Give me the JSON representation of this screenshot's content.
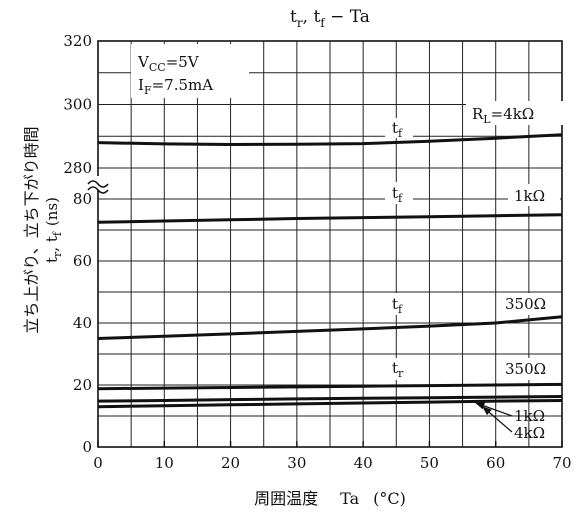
{
  "chart_data": {
    "type": "line",
    "title_main": "t",
    "title_sub_r": "r",
    "title_sep": ", ",
    "title_sub_f": "f",
    "title_tail": " − Ta",
    "ylabel_jp": "立ち上がり、立ち下がり時間",
    "ylabel_sym_t1": "t",
    "ylabel_sym_r": "r",
    "ylabel_sym_sep": ", t",
    "ylabel_sym_f": "f",
    "ylabel_unit": "(ns)",
    "xlabel_jp": "周囲温度",
    "xlabel_sym": "Ta",
    "xlabel_unit": "(°C)",
    "conditions": {
      "vcc_main": "V",
      "vcc_sub": "CC",
      "vcc_val": "=5V",
      "if_main": "I",
      "if_sub": "F",
      "if_val": "=7.5mA"
    },
    "x_ticks": [
      "0",
      "10",
      "20",
      "30",
      "40",
      "50",
      "60",
      "70"
    ],
    "y_ticks_upper": [
      "320",
      "300",
      "280"
    ],
    "y_ticks_lower": [
      "80",
      "60",
      "40",
      "20",
      "0"
    ],
    "xlim": [
      0,
      70
    ],
    "ylim_lower": [
      0,
      80
    ],
    "ylim_upper": [
      280,
      320
    ],
    "axis_break": true,
    "grid": true,
    "x": [
      0,
      10,
      20,
      30,
      40,
      50,
      60,
      70
    ],
    "series": [
      {
        "label_main": "t",
        "label_sub": "f",
        "param": "R",
        "param_sub": "L",
        "param_val": "=4kΩ",
        "values": [
          288,
          287.6,
          287.4,
          287.5,
          287.7,
          288.4,
          289.4,
          290.5
        ]
      },
      {
        "label_main": "t",
        "label_sub": "f",
        "param_val": "1kΩ",
        "values": [
          72.5,
          72.9,
          73.3,
          73.7,
          74.0,
          74.3,
          74.6,
          74.9
        ]
      },
      {
        "label_main": "t",
        "label_sub": "f",
        "param_val": "350Ω",
        "values": [
          35.0,
          35.7,
          36.5,
          37.3,
          38.1,
          39.0,
          40.0,
          42.0
        ]
      },
      {
        "label_main": "t",
        "label_sub": "r",
        "param_val": "350Ω",
        "values": [
          18.8,
          19.0,
          19.2,
          19.4,
          19.6,
          19.8,
          20.0,
          20.2
        ]
      },
      {
        "param_val": "1kΩ",
        "values": [
          14.8,
          15.0,
          15.3,
          15.5,
          15.7,
          15.9,
          16.1,
          16.3
        ]
      },
      {
        "param_val": "4kΩ",
        "values": [
          13.0,
          13.3,
          13.6,
          13.9,
          14.2,
          14.5,
          14.8,
          15.0
        ]
      }
    ]
  }
}
